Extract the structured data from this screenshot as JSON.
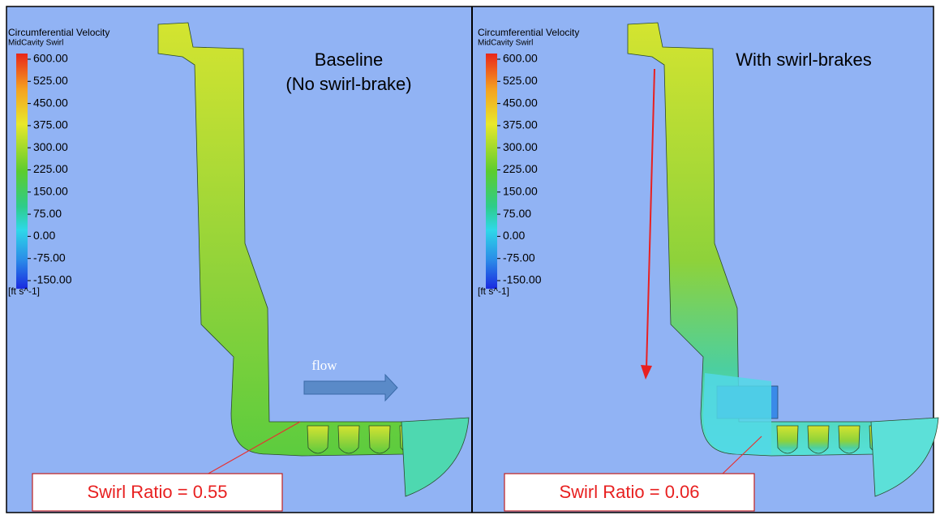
{
  "panels": [
    {
      "legend": {
        "title": "Circumferential Velocity",
        "subtitle": "MidCavity Swirl",
        "ticks": [
          "600.00",
          "525.00",
          "450.00",
          "375.00",
          "300.00",
          "225.00",
          "150.00",
          "75.00",
          "0.00",
          "-75.00",
          "-150.00"
        ],
        "unit": "[ft s^-1]"
      },
      "title": [
        "Baseline",
        "(No swirl-brake)"
      ],
      "flow": "flow",
      "annotation": "Swirl Ratio = 0.55"
    },
    {
      "legend": {
        "title": "Circumferential Velocity",
        "subtitle": "MidCavity Swirl",
        "ticks": [
          "600.00",
          "525.00",
          "450.00",
          "375.00",
          "300.00",
          "225.00",
          "150.00",
          "75.00",
          "0.00",
          "-75.00",
          "-150.00"
        ],
        "unit": "[ft s^-1]"
      },
      "title": [
        "With swirl-brakes"
      ],
      "annotation": "Swirl Ratio = 0.06"
    }
  ]
}
